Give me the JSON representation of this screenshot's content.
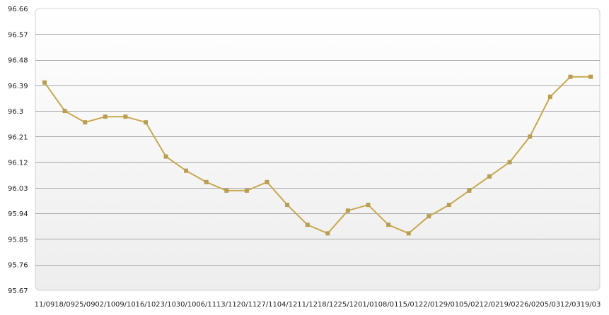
{
  "chart_data": {
    "type": "line",
    "title": "",
    "xlabel": "",
    "ylabel": "",
    "ylim": [
      95.67,
      96.66
    ],
    "yticks": [
      "96.66",
      "96.57",
      "96.48",
      "96.39",
      "96.3",
      "96.21",
      "96.12",
      "96.03",
      "95.94",
      "95.85",
      "95.76",
      "95.67"
    ],
    "categories": [
      "11/09",
      "18/09",
      "25/09",
      "02/10",
      "09/10",
      "16/10",
      "23/10",
      "30/10",
      "06/11",
      "13/11",
      "20/11",
      "27/11",
      "04/12",
      "11/12",
      "18/12",
      "25/12",
      "01/01",
      "08/01",
      "15/01",
      "22/01",
      "29/01",
      "05/02",
      "12/02",
      "19/02",
      "26/02",
      "05/03",
      "12/03",
      "19/03"
    ],
    "series": [
      {
        "values": [
          96.4,
          96.3,
          96.26,
          96.28,
          96.28,
          96.26,
          96.14,
          96.09,
          96.05,
          96.02,
          96.02,
          96.05,
          95.97,
          95.9,
          95.87,
          95.95,
          95.97,
          95.9,
          95.87,
          95.93,
          95.97,
          96.02,
          96.07,
          96.12,
          96.21,
          96.35,
          96.42,
          96.42
        ],
        "color": "#c8a84e",
        "marker_color": "#b89d52"
      }
    ],
    "grid": true,
    "legend": "none",
    "colors": {
      "line": "#c8a84e",
      "marker": "#b89d52",
      "grid": "#a8a8a8",
      "frame": "#d0d0d0",
      "bg_top": "#ffffff",
      "bg_bottom": "#ededed"
    }
  }
}
